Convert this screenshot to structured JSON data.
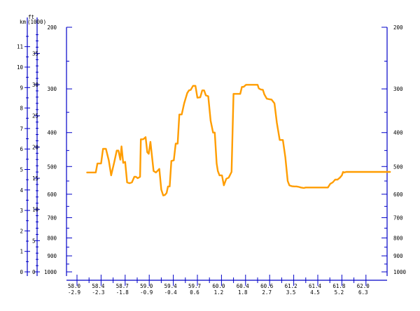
{
  "chart_data": {
    "type": "line",
    "title": "",
    "left_axis": {
      "km_label": "km",
      "ft_label": "ft",
      "ft_unit": "(1000)",
      "km_ticks": [
        "0",
        "1",
        "2",
        "3",
        "4",
        "5",
        "6",
        "7",
        "8",
        "9",
        "10",
        "11"
      ],
      "ft_ticks": [
        "0",
        "5",
        "10",
        "15",
        "20",
        "25",
        "30",
        "35"
      ]
    },
    "pressure_axis": {
      "scale": "log",
      "ticks": [
        "200",
        "300",
        "400",
        "500",
        "600",
        "700",
        "800",
        "900",
        "1000"
      ]
    },
    "x_axis": {
      "ticks": [
        {
          "lat": "58.0",
          "lon": "-2.9"
        },
        {
          "lat": "58.4",
          "lon": "-2.3"
        },
        {
          "lat": "58.7",
          "lon": "-1.8"
        },
        {
          "lat": "59.0",
          "lon": "-0.9"
        },
        {
          "lat": "59.4",
          "lon": "-0.4"
        },
        {
          "lat": "59.7",
          "lon": "0.6"
        },
        {
          "lat": "60.0",
          "lon": "1.2"
        },
        {
          "lat": "60.4",
          "lon": "1.8"
        },
        {
          "lat": "60.6",
          "lon": "2.7"
        },
        {
          "lat": "61.2",
          "lon": "3.5"
        },
        {
          "lat": "61.4",
          "lon": "4.5"
        },
        {
          "lat": "61.8",
          "lon": "5.2"
        },
        {
          "lat": "62.0",
          "lon": "6.3"
        }
      ]
    },
    "series": [
      {
        "color": "#ff9d00",
        "x": [
          0.42,
          0.65,
          0.78,
          0.85,
          1.0,
          1.08,
          1.2,
          1.32,
          1.42,
          1.55,
          1.65,
          1.72,
          1.8,
          1.85,
          1.92,
          2.0,
          2.08,
          2.18,
          2.28,
          2.38,
          2.45,
          2.52,
          2.62,
          2.65,
          2.75,
          2.85,
          2.92,
          2.98,
          3.05,
          3.18,
          3.28,
          3.35,
          3.42,
          3.5,
          3.58,
          3.65,
          3.72,
          3.78,
          3.85,
          3.92,
          4.02,
          4.1,
          4.18,
          4.25,
          4.35,
          4.45,
          4.52,
          4.58,
          4.65,
          4.72,
          4.82,
          4.92,
          5.0,
          5.12,
          5.2,
          5.28,
          5.35,
          5.45,
          5.55,
          5.65,
          5.72,
          5.8,
          5.85,
          5.92,
          6.02,
          6.1,
          6.2,
          6.3,
          6.42,
          6.5,
          6.58,
          6.62,
          6.72,
          6.78,
          6.85,
          6.92,
          7.02,
          7.12,
          7.18,
          7.25,
          7.32,
          7.38,
          7.45,
          7.5,
          7.55,
          7.62,
          7.72,
          7.78,
          7.88,
          7.98,
          8.08,
          8.2,
          8.3,
          8.42,
          8.55,
          8.65,
          8.75,
          8.82,
          8.92,
          9.02,
          9.12,
          9.22,
          9.3,
          9.42,
          9.5,
          9.55,
          9.62,
          9.72,
          9.82,
          9.92,
          10.02,
          10.12,
          10.22,
          10.32,
          10.42,
          10.52,
          10.62,
          10.72,
          10.82,
          10.92,
          11.0,
          11.05,
          11.1,
          11.18,
          11.25,
          11.32,
          11.42,
          11.52,
          11.62,
          11.72,
          11.82,
          11.92,
          12.02,
          12.12,
          12.22,
          12.32,
          12.42,
          12.52,
          12.6,
          12.72,
          12.82,
          12.92,
          13.0
        ],
        "pressure": [
          520,
          520,
          520,
          490,
          490,
          445,
          445,
          480,
          530,
          485,
          450,
          450,
          478,
          438,
          488,
          485,
          555,
          558,
          555,
          535,
          535,
          540,
          535,
          418,
          418,
          412,
          455,
          460,
          425,
          515,
          520,
          514,
          508,
          582,
          605,
          603,
          595,
          570,
          570,
          482,
          480,
          430,
          430,
          355,
          355,
          330,
          318,
          308,
          303,
          302,
          294,
          294,
          318,
          317,
          303,
          303,
          313,
          315,
          370,
          400,
          400,
          490,
          515,
          530,
          530,
          566,
          542,
          538,
          518,
          310,
          310,
          310,
          310,
          310,
          296,
          296,
          292,
          292,
          292,
          292,
          292,
          292,
          292,
          292,
          299,
          301,
          302,
          311,
          320,
          321,
          322,
          330,
          375,
          420,
          420,
          470,
          550,
          566,
          569,
          570,
          570,
          572,
          574,
          576,
          574,
          574,
          574,
          574,
          574,
          574,
          574,
          574,
          574,
          574,
          574,
          560,
          555,
          545,
          545,
          538,
          530,
          518,
          520,
          518,
          518,
          518,
          518,
          518,
          518,
          518,
          518,
          518,
          518,
          518,
          518,
          518,
          518,
          518,
          518,
          518,
          518,
          518,
          518
        ]
      }
    ]
  }
}
